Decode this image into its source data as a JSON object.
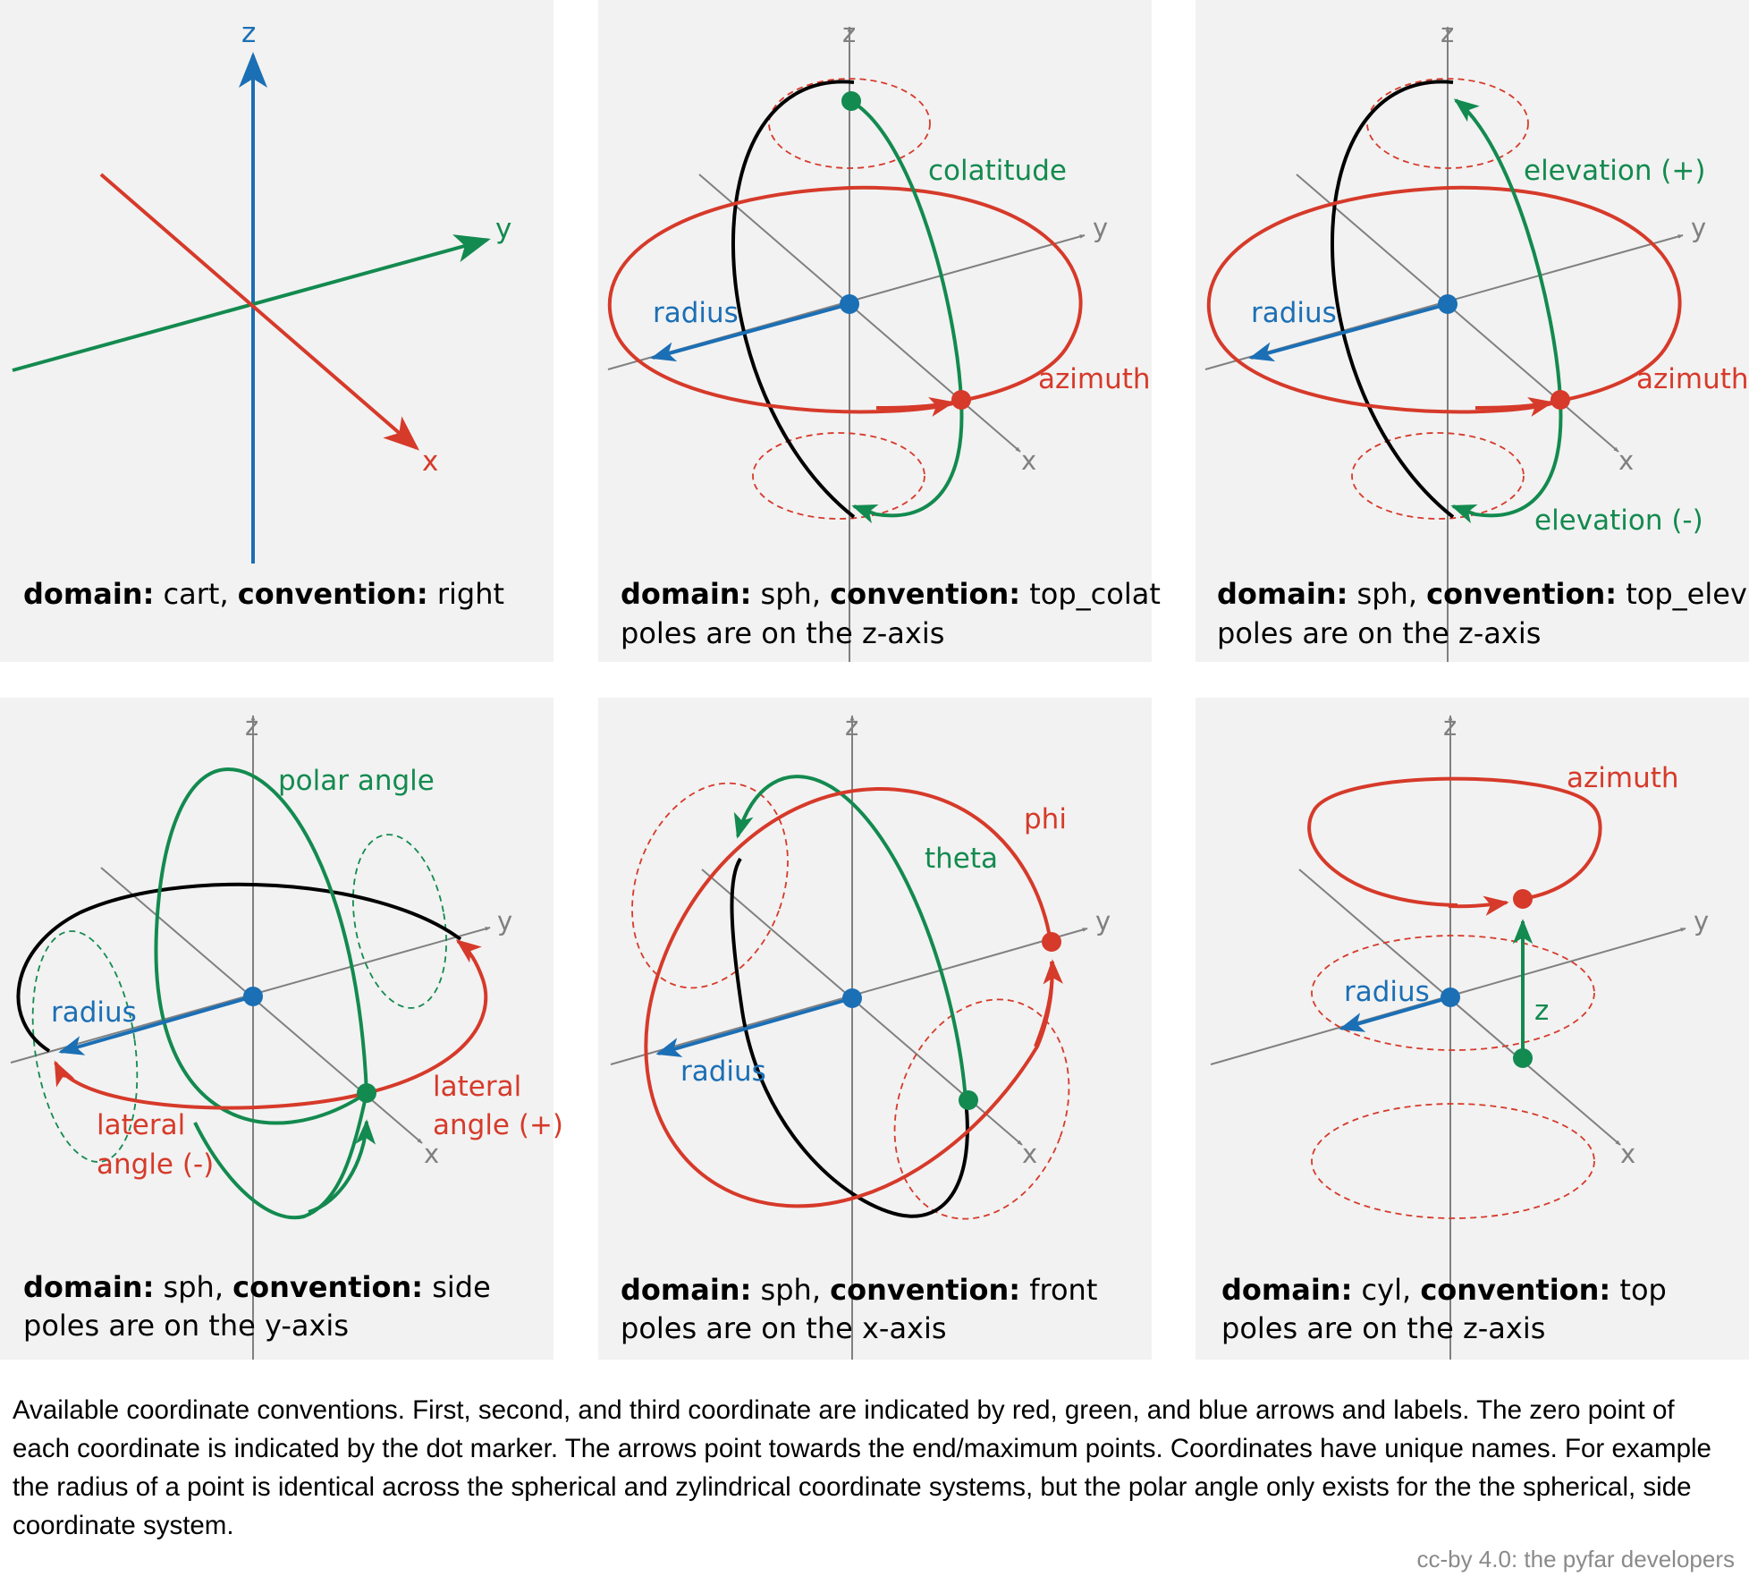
{
  "colors": {
    "first": "#d63a2a",
    "second": "#138a4f",
    "third": "#1b6fb5",
    "axis": "#808080",
    "panel": "#f2f2f2"
  },
  "panels": [
    {
      "domain_key": "domain:",
      "domain": "cart",
      "convention_key": "convention:",
      "convention": "right",
      "poles": "",
      "axes": {
        "x": "x",
        "y": "y",
        "z": "z"
      }
    },
    {
      "domain_key": "domain:",
      "domain": "sph",
      "convention_key": "convention:",
      "convention": "top_colat",
      "poles": "poles are on the z-axis",
      "axes": {
        "x": "x",
        "y": "y",
        "z": "z"
      },
      "labels": {
        "first": "azimuth",
        "second": "colatitude",
        "third": "radius"
      }
    },
    {
      "domain_key": "domain:",
      "domain": "sph",
      "convention_key": "convention:",
      "convention": "top_elev",
      "poles": "poles are on the z-axis",
      "axes": {
        "x": "x",
        "y": "y",
        "z": "z"
      },
      "labels": {
        "first": "azimuth",
        "second_pos": "elevation (+)",
        "second_neg": "elevation (-)",
        "third": "radius"
      }
    },
    {
      "domain_key": "domain:",
      "domain": "sph",
      "convention_key": "convention:",
      "convention": "side",
      "poles": "poles are on the y-axis",
      "axes": {
        "x": "x",
        "y": "y",
        "z": "z"
      },
      "labels": {
        "first_pos_1": "lateral",
        "first_pos_2": "angle (+)",
        "first_neg_1": "lateral",
        "first_neg_2": "angle (-)",
        "second": "polar angle",
        "third": "radius"
      }
    },
    {
      "domain_key": "domain:",
      "domain": "sph",
      "convention_key": "convention:",
      "convention": "front",
      "poles": "poles are on the x-axis",
      "axes": {
        "x": "x",
        "y": "y",
        "z": "z"
      },
      "labels": {
        "first": "phi",
        "second": "theta",
        "third": "radius"
      }
    },
    {
      "domain_key": "domain:",
      "domain": "cyl",
      "convention_key": "convention:",
      "convention": "top",
      "poles": "poles are on the z-axis",
      "axes": {
        "x": "x",
        "y": "y",
        "z": "z"
      },
      "labels": {
        "first": "azimuth",
        "second": "z",
        "third": "radius"
      }
    }
  ],
  "caption": "Available coordinate conventions. First, second, and third coordinate are indicated by red, green, and blue arrows and labels. The zero point of each coordinate is indicated by the dot marker. The arrows point towards the end/maximum points. Coordinates have unique names. For example the radius of a point is identical across the spherical and zylindrical coordinate systems, but the polar angle only exists for the the spherical, side coordinate system.",
  "credit": "cc-by 4.0: the pyfar developers"
}
